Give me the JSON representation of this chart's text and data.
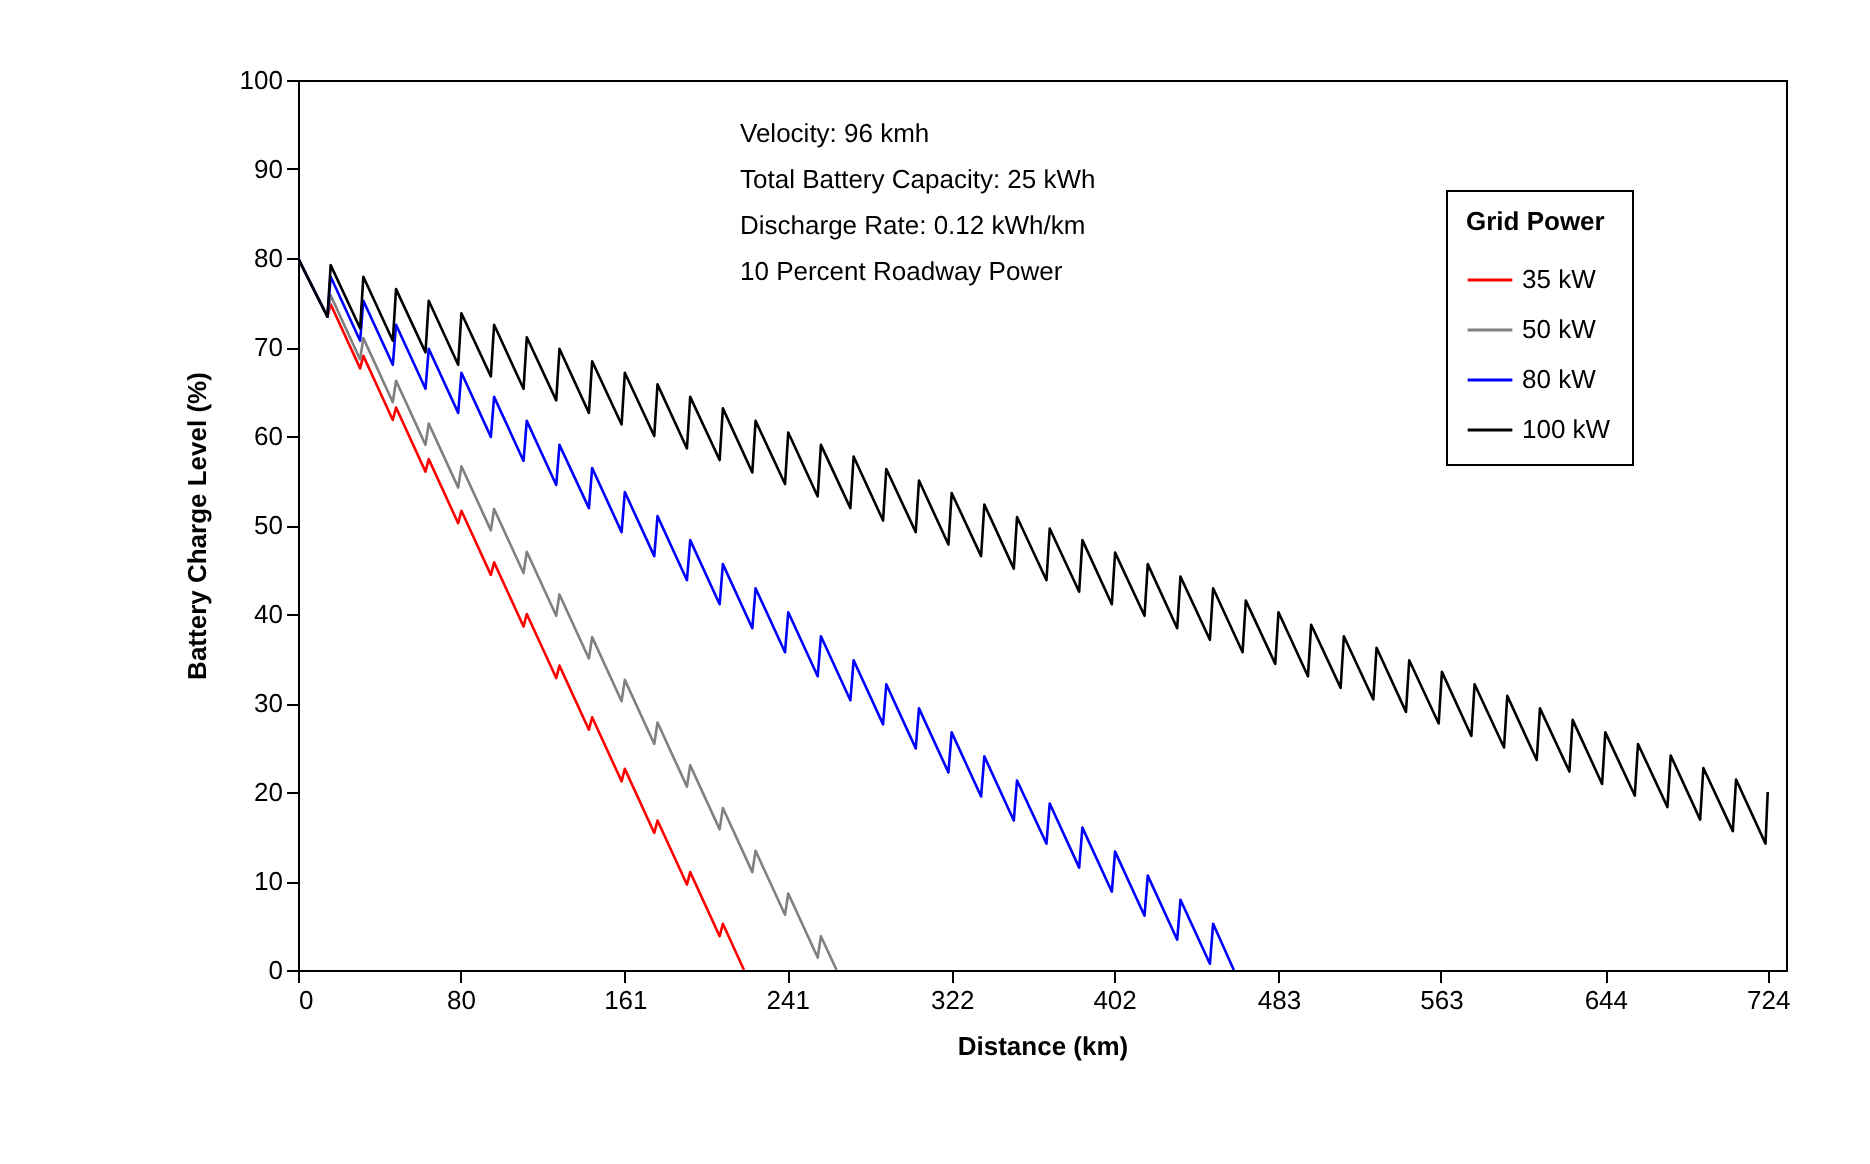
{
  "chart_data": {
    "type": "line",
    "xlabel": "Distance (km)",
    "ylabel": "Battery Charge Level (%)",
    "legend_title": "Grid Power",
    "legend": "top right",
    "annotations": [
      "Velocity: 96 kmh",
      "Total Battery Capacity: 25 kWh",
      "Discharge Rate: 0.12 kWh/km",
      "10 Percent Roadway Power"
    ],
    "xlim": [
      0,
      733
    ],
    "xticks": [
      0,
      80,
      161,
      241,
      322,
      402,
      483,
      563,
      644,
      724
    ],
    "ylim": [
      0,
      100
    ],
    "yticks": [
      0,
      10,
      20,
      30,
      40,
      50,
      60,
      70,
      80,
      90,
      100
    ],
    "series": [
      {
        "name": "35 kW",
        "color": "#ff0000",
        "x": [
          0,
          14.5,
          16.1,
          30.6,
          32.2,
          46.7,
          48.3,
          62.8,
          64.4,
          78.9,
          80.5,
          95.0,
          96.6,
          111.1,
          112.7,
          127.2,
          128.8,
          143.3,
          144.9,
          159.4,
          161.0,
          175.5,
          177.1,
          191.6,
          193.2,
          207.7,
          209.3,
          219.7
        ],
        "values": [
          80,
          73.4,
          74.8,
          67.6,
          69.0,
          61.8,
          63.2,
          56.0,
          57.4,
          50.2,
          51.6,
          44.4,
          45.8,
          38.6,
          40.0,
          32.8,
          34.2,
          27.0,
          28.4,
          21.2,
          22.6,
          15.4,
          16.8,
          9.6,
          11.0,
          3.8,
          5.2,
          0
        ]
      },
      {
        "name": "50 kW",
        "color": "#808080",
        "x": [
          0,
          14.5,
          16.1,
          30.6,
          32.2,
          46.7,
          48.3,
          62.8,
          64.4,
          78.9,
          80.5,
          95.0,
          96.6,
          111.1,
          112.7,
          127.2,
          128.8,
          143.3,
          144.9,
          159.4,
          161.0,
          175.5,
          177.1,
          191.6,
          193.2,
          207.7,
          209.3,
          223.8,
          225.4,
          239.9,
          241.5,
          256.0,
          257.6,
          265.3
        ],
        "values": [
          80,
          73.4,
          75.8,
          68.6,
          71.0,
          63.8,
          66.2,
          59.0,
          61.4,
          54.2,
          56.6,
          49.4,
          51.8,
          44.6,
          47.0,
          39.8,
          42.2,
          35.0,
          37.4,
          30.2,
          32.6,
          25.4,
          27.8,
          20.6,
          23.0,
          15.8,
          18.2,
          11.0,
          13.4,
          6.2,
          8.6,
          1.4,
          3.8,
          0
        ]
      },
      {
        "name": "80 kW",
        "color": "#0000ff",
        "x": [
          0,
          14.5,
          16.1,
          30.6,
          32.2,
          46.7,
          48.3,
          62.8,
          64.4,
          78.9,
          80.5,
          95.0,
          96.6,
          111.1,
          112.7,
          127.2,
          128.8,
          143.3,
          144.9,
          159.4,
          161.0,
          175.5,
          177.1,
          191.6,
          193.2,
          207.7,
          209.3,
          223.8,
          225.4,
          239.9,
          241.5,
          256.0,
          257.6,
          272.1,
          273.7,
          288.2,
          289.8,
          304.3,
          305.9,
          320.4,
          322.0,
          336.5,
          338.1,
          352.6,
          354.2,
          368.7,
          370.3,
          384.8,
          386.4,
          400.9,
          402.5,
          417.0,
          418.6,
          433.1,
          434.7,
          449.2,
          450.8,
          461
        ],
        "values": [
          80,
          73.4,
          77.9,
          70.7,
          75.2,
          68.0,
          72.5,
          65.3,
          69.8,
          62.6,
          67.1,
          59.9,
          64.4,
          57.2,
          61.7,
          54.5,
          59.0,
          51.9,
          56.4,
          49.2,
          53.7,
          46.5,
          51.0,
          43.8,
          48.3,
          41.1,
          45.6,
          38.4,
          42.9,
          35.7,
          40.2,
          33.0,
          37.5,
          30.3,
          34.8,
          27.6,
          32.1,
          24.9,
          29.4,
          22.2,
          26.7,
          19.5,
          24.0,
          16.8,
          21.3,
          14.2,
          18.7,
          11.5,
          16.0,
          8.8,
          13.3,
          6.1,
          10.6,
          3.4,
          7.9,
          0.7,
          5.2,
          0
        ]
      },
      {
        "name": "100 kW",
        "color": "#000000",
        "x": [
          0,
          14.5,
          16.1,
          30.6,
          32.2,
          46.7,
          48.3,
          62.8,
          64.4,
          78.9,
          80.5,
          95.0,
          96.6,
          111.1,
          112.7,
          127.2,
          128.8,
          143.3,
          144.9,
          159.4,
          161.0,
          175.5,
          177.1,
          191.6,
          193.2,
          207.7,
          209.3,
          223.8,
          225.4,
          239.9,
          241.5,
          256.0,
          257.6,
          272.1,
          273.7,
          288.2,
          289.8,
          304.3,
          305.9,
          320.4,
          322.0,
          336.5,
          338.1,
          352.6,
          354.2,
          368.7,
          370.3,
          384.8,
          386.4,
          400.9,
          402.5,
          417.0,
          418.6,
          433.1,
          434.7,
          449.2,
          450.8,
          465.3,
          466.9,
          481.4,
          483.0,
          497.5,
          499.1,
          513.6,
          515.2,
          529.7,
          531.3,
          545.8,
          547.4,
          561.9,
          563.5,
          578.0,
          579.6,
          594.1,
          595.7,
          610.2,
          611.8,
          626.3,
          627.9,
          642.4,
          644.0,
          658.5,
          660.1,
          674.6,
          676.2,
          690.7,
          692.3,
          706.8,
          708.4,
          722.9,
          724
        ],
        "values": [
          80,
          73.4,
          79.2,
          72.1,
          77.9,
          70.7,
          76.5,
          69.4,
          75.2,
          68.0,
          73.8,
          66.7,
          72.5,
          65.3,
          71.1,
          64.0,
          69.8,
          62.6,
          68.4,
          61.3,
          67.1,
          60.0,
          65.8,
          58.6,
          64.4,
          57.3,
          63.1,
          55.9,
          61.7,
          54.6,
          60.4,
          53.2,
          59.0,
          51.9,
          57.7,
          50.5,
          56.3,
          49.2,
          55.0,
          47.8,
          53.6,
          46.5,
          52.3,
          45.1,
          50.9,
          43.8,
          49.6,
          42.5,
          48.3,
          41.1,
          46.9,
          39.8,
          45.6,
          38.4,
          44.2,
          37.1,
          42.9,
          35.7,
          41.5,
          34.4,
          40.2,
          33.0,
          38.8,
          31.7,
          37.5,
          30.4,
          36.2,
          29.0,
          34.8,
          27.7,
          33.5,
          26.3,
          32.1,
          25.0,
          30.8,
          23.6,
          29.4,
          22.3,
          28.1,
          20.9,
          26.7,
          19.6,
          25.4,
          18.3,
          24.1,
          16.9,
          22.7,
          15.6,
          21.4,
          14.2,
          20.0
        ]
      }
    ]
  }
}
